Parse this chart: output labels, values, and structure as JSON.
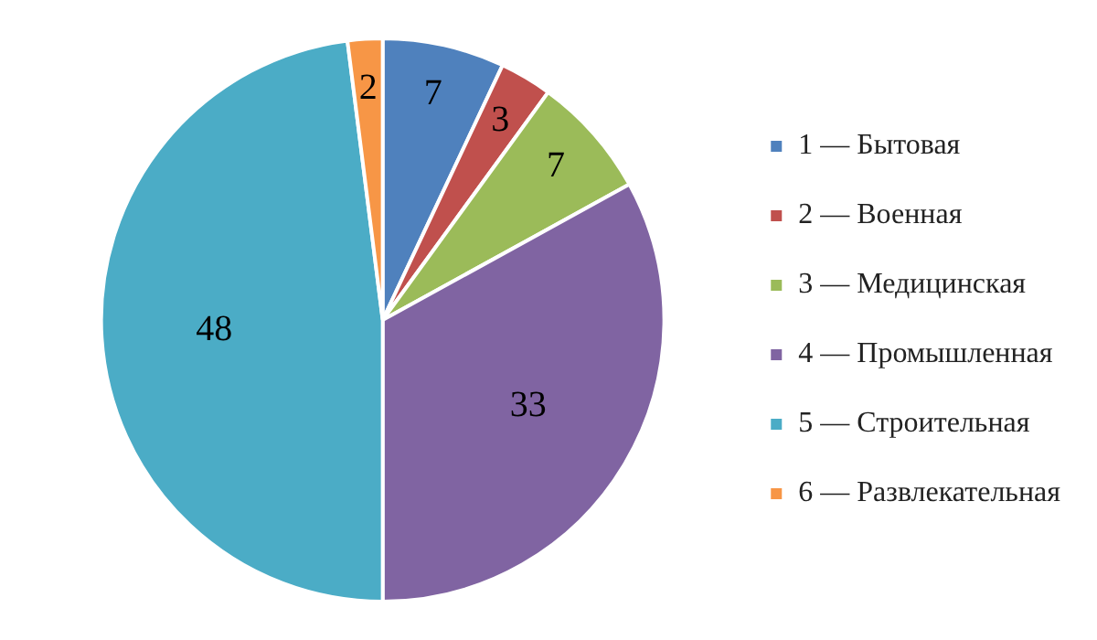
{
  "chart_data": {
    "type": "pie",
    "categories": [
      "1 — Бытовая",
      "2 — Военная",
      "3 — Медицинская",
      "4 — Промышленная",
      "5 — Строительная",
      "6 — Развлекательная"
    ],
    "values": [
      7,
      3,
      7,
      33,
      48,
      2
    ],
    "colors": [
      "#4f81bd",
      "#c0504d",
      "#9bbb59",
      "#8064a2",
      "#4bacc6",
      "#f79646"
    ],
    "legend": "right",
    "data_labels": true
  }
}
